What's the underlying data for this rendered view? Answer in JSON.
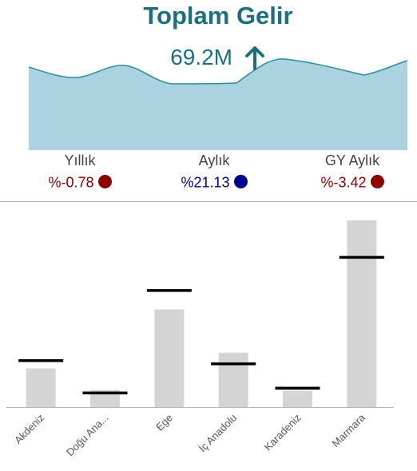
{
  "kpi": {
    "title": "Toplam Gelir",
    "value": "69.2M",
    "trend": "up-arrow-icon",
    "accent_color": "#1b6f7e",
    "area_color": "#abd3df",
    "sparkline_color": "#2a8ca2"
  },
  "metrics": [
    {
      "label": "Yıllık",
      "value": "%-0.78",
      "color": "#8b0000"
    },
    {
      "label": "Aylık",
      "value": "%21.13",
      "color": "#00008b"
    },
    {
      "label": "GY Aylık",
      "value": "%-3.42",
      "color": "#8b0000"
    }
  ],
  "chart_data": {
    "type": "bar",
    "categories": [
      "Akdeniz",
      "Doğu Ana...",
      "Ege",
      "İç Anadolu",
      "Karadeniz",
      "Marmara"
    ],
    "series": [
      {
        "values": [
          49,
          22,
          124,
          69,
          21,
          237
        ]
      },
      {
        "values": [
          59,
          18,
          148,
          55,
          24,
          190
        ]
      }
    ],
    "ylim": [
      0,
      240
    ],
    "bar_color": "#d4d4d4",
    "target_color": "#000000"
  }
}
